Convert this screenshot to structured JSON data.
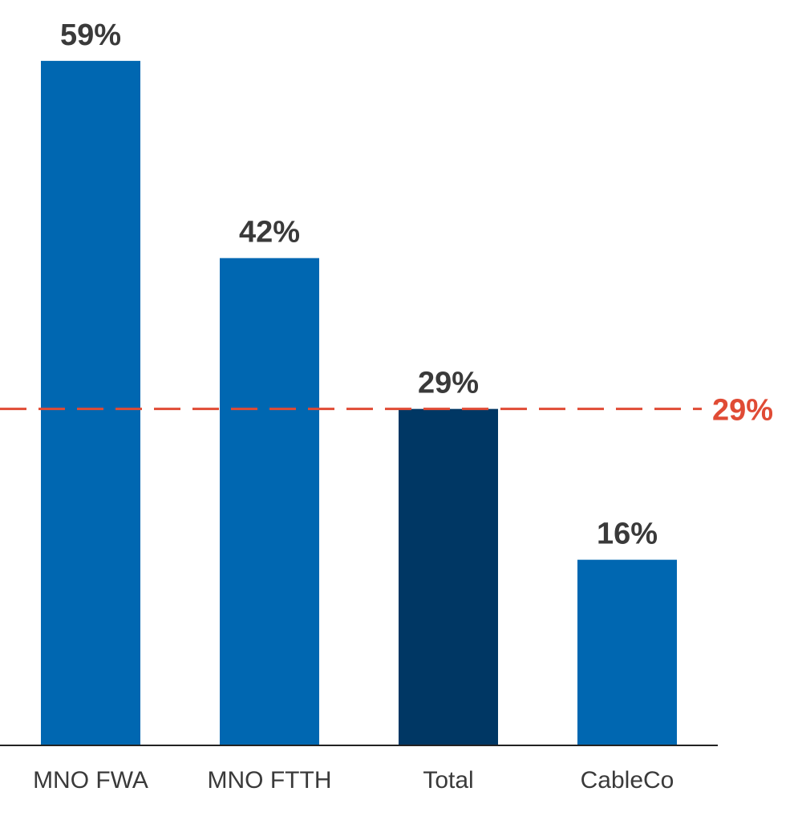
{
  "chart_data": {
    "type": "bar",
    "categories": [
      "MNO FWA",
      "MNO FTTH",
      "Total",
      "CableCo"
    ],
    "values": [
      59,
      42,
      29,
      16
    ],
    "value_labels": [
      "59%",
      "42%",
      "29%",
      "16%"
    ],
    "highlight_category": "Total",
    "reference_line": {
      "value": 29,
      "label": "29%",
      "style": "dashed"
    },
    "title": "",
    "xlabel": "",
    "ylabel": "",
    "ylim": [
      0,
      62
    ],
    "grid": false,
    "legend": "none"
  },
  "colors": {
    "bar": "#0067b1",
    "highlight_bar": "#003764",
    "reference_line": "#e04b35",
    "axis": "#222222",
    "text": "#3a3a3a"
  }
}
